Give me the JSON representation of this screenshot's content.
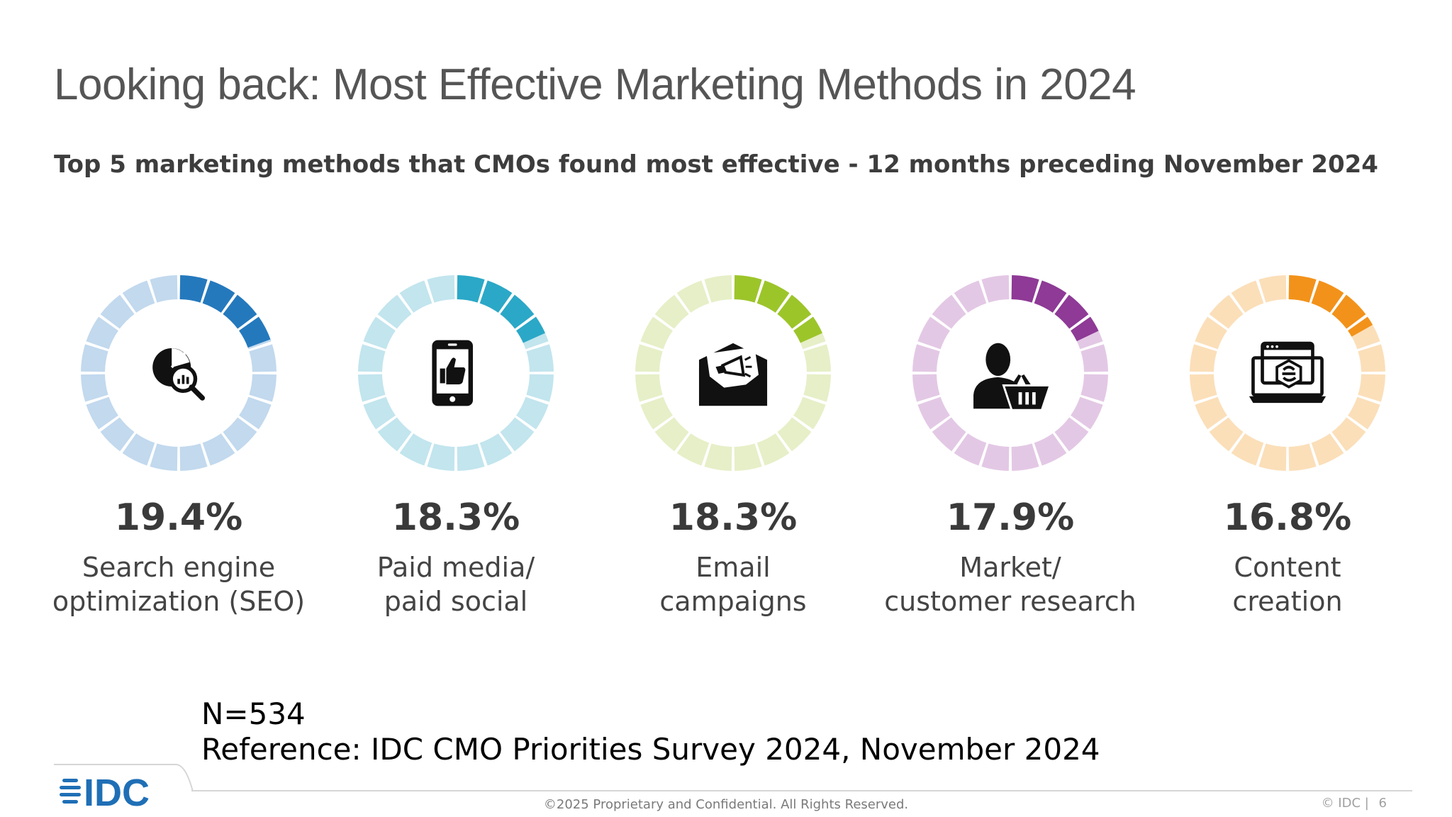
{
  "title": "Looking back: Most Effective Marketing Methods in 2024",
  "subtitle": "Top 5 marketing methods that CMOs found most effective - 12 months preceding November 2024",
  "chart_data": {
    "type": "donut",
    "items": [
      {
        "value": 19.4,
        "value_label": "19.4%",
        "label_line1": "Search engine",
        "label_line2": "optimization (SEO)",
        "color": "#2479bd",
        "light_color": "#c2d9ee",
        "icon": "seo-analytics-icon"
      },
      {
        "value": 18.3,
        "value_label": "18.3%",
        "label_line1": "Paid media/",
        "label_line2": "paid social",
        "color": "#2ba8c7",
        "light_color": "#c2e5ee",
        "icon": "smartphone-thumbs-up-icon"
      },
      {
        "value": 18.3,
        "value_label": "18.3%",
        "label_line1": "Email",
        "label_line2": "campaigns",
        "color": "#9cc52a",
        "light_color": "#e6efc7",
        "icon": "email-megaphone-icon"
      },
      {
        "value": 17.9,
        "value_label": "17.9%",
        "label_line1": "Market/",
        "label_line2": "customer research",
        "color": "#8e3a96",
        "light_color": "#e3c8e5",
        "icon": "customer-basket-icon"
      },
      {
        "value": 16.8,
        "value_label": "16.8%",
        "label_line1": "Content",
        "label_line2": "creation",
        "color": "#f2921a",
        "light_color": "#fbdfb9",
        "icon": "content-laptop-icon"
      }
    ],
    "scale_max": 100
  },
  "notes": {
    "sample": "N=534",
    "reference": "Reference: IDC CMO Priorities Survey 2024, November 2024"
  },
  "footer": {
    "logo_text": "IDC",
    "copyright": "©2025 Proprietary and Confidential. All Rights Reserved.",
    "page_info": "© IDC |",
    "page_number": "6",
    "brand_color": "#1f6fb6"
  }
}
